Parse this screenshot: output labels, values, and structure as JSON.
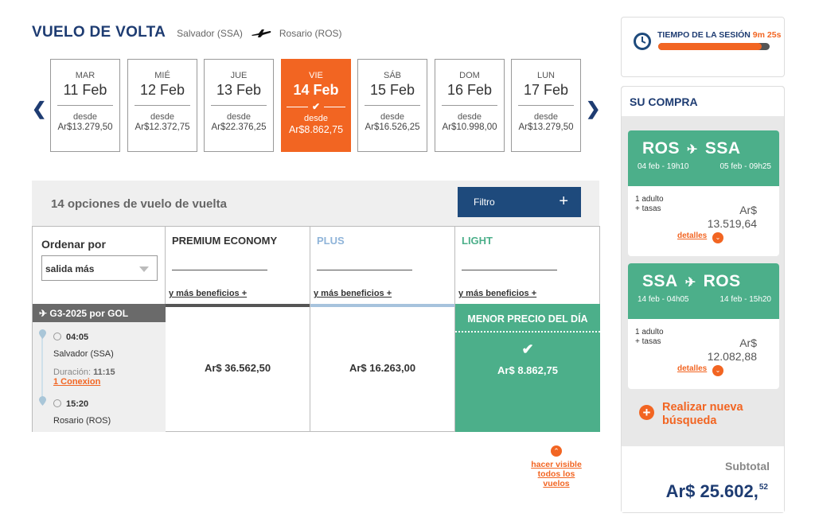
{
  "header": {
    "title": "VUELO DE VOLTA",
    "from": "Salvador (SSA)",
    "to": "Rosario (ROS)"
  },
  "dates": [
    {
      "dow": "MAR",
      "day": "11 Feb",
      "desde": "desde",
      "price": "Ar$13.279,50"
    },
    {
      "dow": "MIÉ",
      "day": "12 Feb",
      "desde": "desde",
      "price": "Ar$12.372,75"
    },
    {
      "dow": "JUE",
      "day": "13 Feb",
      "desde": "desde",
      "price": "Ar$22.376,25"
    },
    {
      "dow": "VIE",
      "day": "14 Feb",
      "desde": "desde",
      "price": "Ar$8.862,75",
      "selected": true
    },
    {
      "dow": "SÁB",
      "day": "15 Feb",
      "desde": "desde",
      "price": "Ar$16.526,25"
    },
    {
      "dow": "DOM",
      "day": "16 Feb",
      "desde": "desde",
      "price": "Ar$10.998,00"
    },
    {
      "dow": "LUN",
      "day": "17 Feb",
      "desde": "desde",
      "price": "Ar$13.279,50"
    }
  ],
  "options": {
    "count_text": "14 opciones de vuelo de vuelta",
    "filter_label": "Filtro",
    "filter_plus": "+"
  },
  "sort": {
    "label": "Ordenar por",
    "selected": "salida más"
  },
  "fares": [
    {
      "name": "PREMIUM ECONOMY",
      "color": "#333333",
      "bar_color": "#555555",
      "more": "y más beneficios +",
      "price": "Ar$ 36.562,50"
    },
    {
      "name": "PLUS",
      "color": "#8fb4d9",
      "bar_color": "#a7c3dd",
      "more": "y más beneficios +",
      "price": "Ar$ 16.263,00"
    },
    {
      "name": "LIGHT",
      "color": "#4caf8a",
      "bar_color": "#4caf8a",
      "more": "y más beneficios +",
      "price": "Ar$ 8.862,75"
    }
  ],
  "best": {
    "title": "MENOR  PRECIO DEL DÍA",
    "check": "✔"
  },
  "flight": {
    "header": "G3-2025 por  GOL",
    "dep_time": "04:05",
    "dep_city": "Salvador (SSA)",
    "duration_label": "Duración:",
    "duration": "11:15",
    "connection": "1 Conexion",
    "arr_time": "15:20",
    "arr_city": "Rosario (ROS)"
  },
  "show_all": {
    "icon": "⌃",
    "text": "hacer visible todos los vuelos"
  },
  "session": {
    "label": "TIEMPO DE LA SESIÓN",
    "time": "9m 25s",
    "progress": 0.93
  },
  "cart": {
    "title": "SU COMPRA",
    "segments": [
      {
        "from": "ROS",
        "to": "SSA",
        "plane": "✈",
        "dep": "04 feb - 19h10",
        "arr": "05 feb - 09h25",
        "pax": "1 adulto",
        "taxes": "+ tasas",
        "currency": "Ar$",
        "amount": "13.519,64",
        "details": "detalles",
        "details_icon": "⌄"
      },
      {
        "from": "SSA",
        "to": "ROS",
        "plane": "✈",
        "dep": "14 feb - 04h05",
        "arr": "14 feb - 15h20",
        "pax": "1 adulto",
        "taxes": "+ tasas",
        "currency": "Ar$",
        "amount": "12.082,88",
        "details": "detalles",
        "details_icon": "⌄"
      }
    ],
    "new_search_icon": "+",
    "new_search": "Realizar nueva búsqueda",
    "subtotal_label": "Subtotal",
    "subtotal_amount": "Ar$ 25.602,",
    "subtotal_cents": "52"
  }
}
